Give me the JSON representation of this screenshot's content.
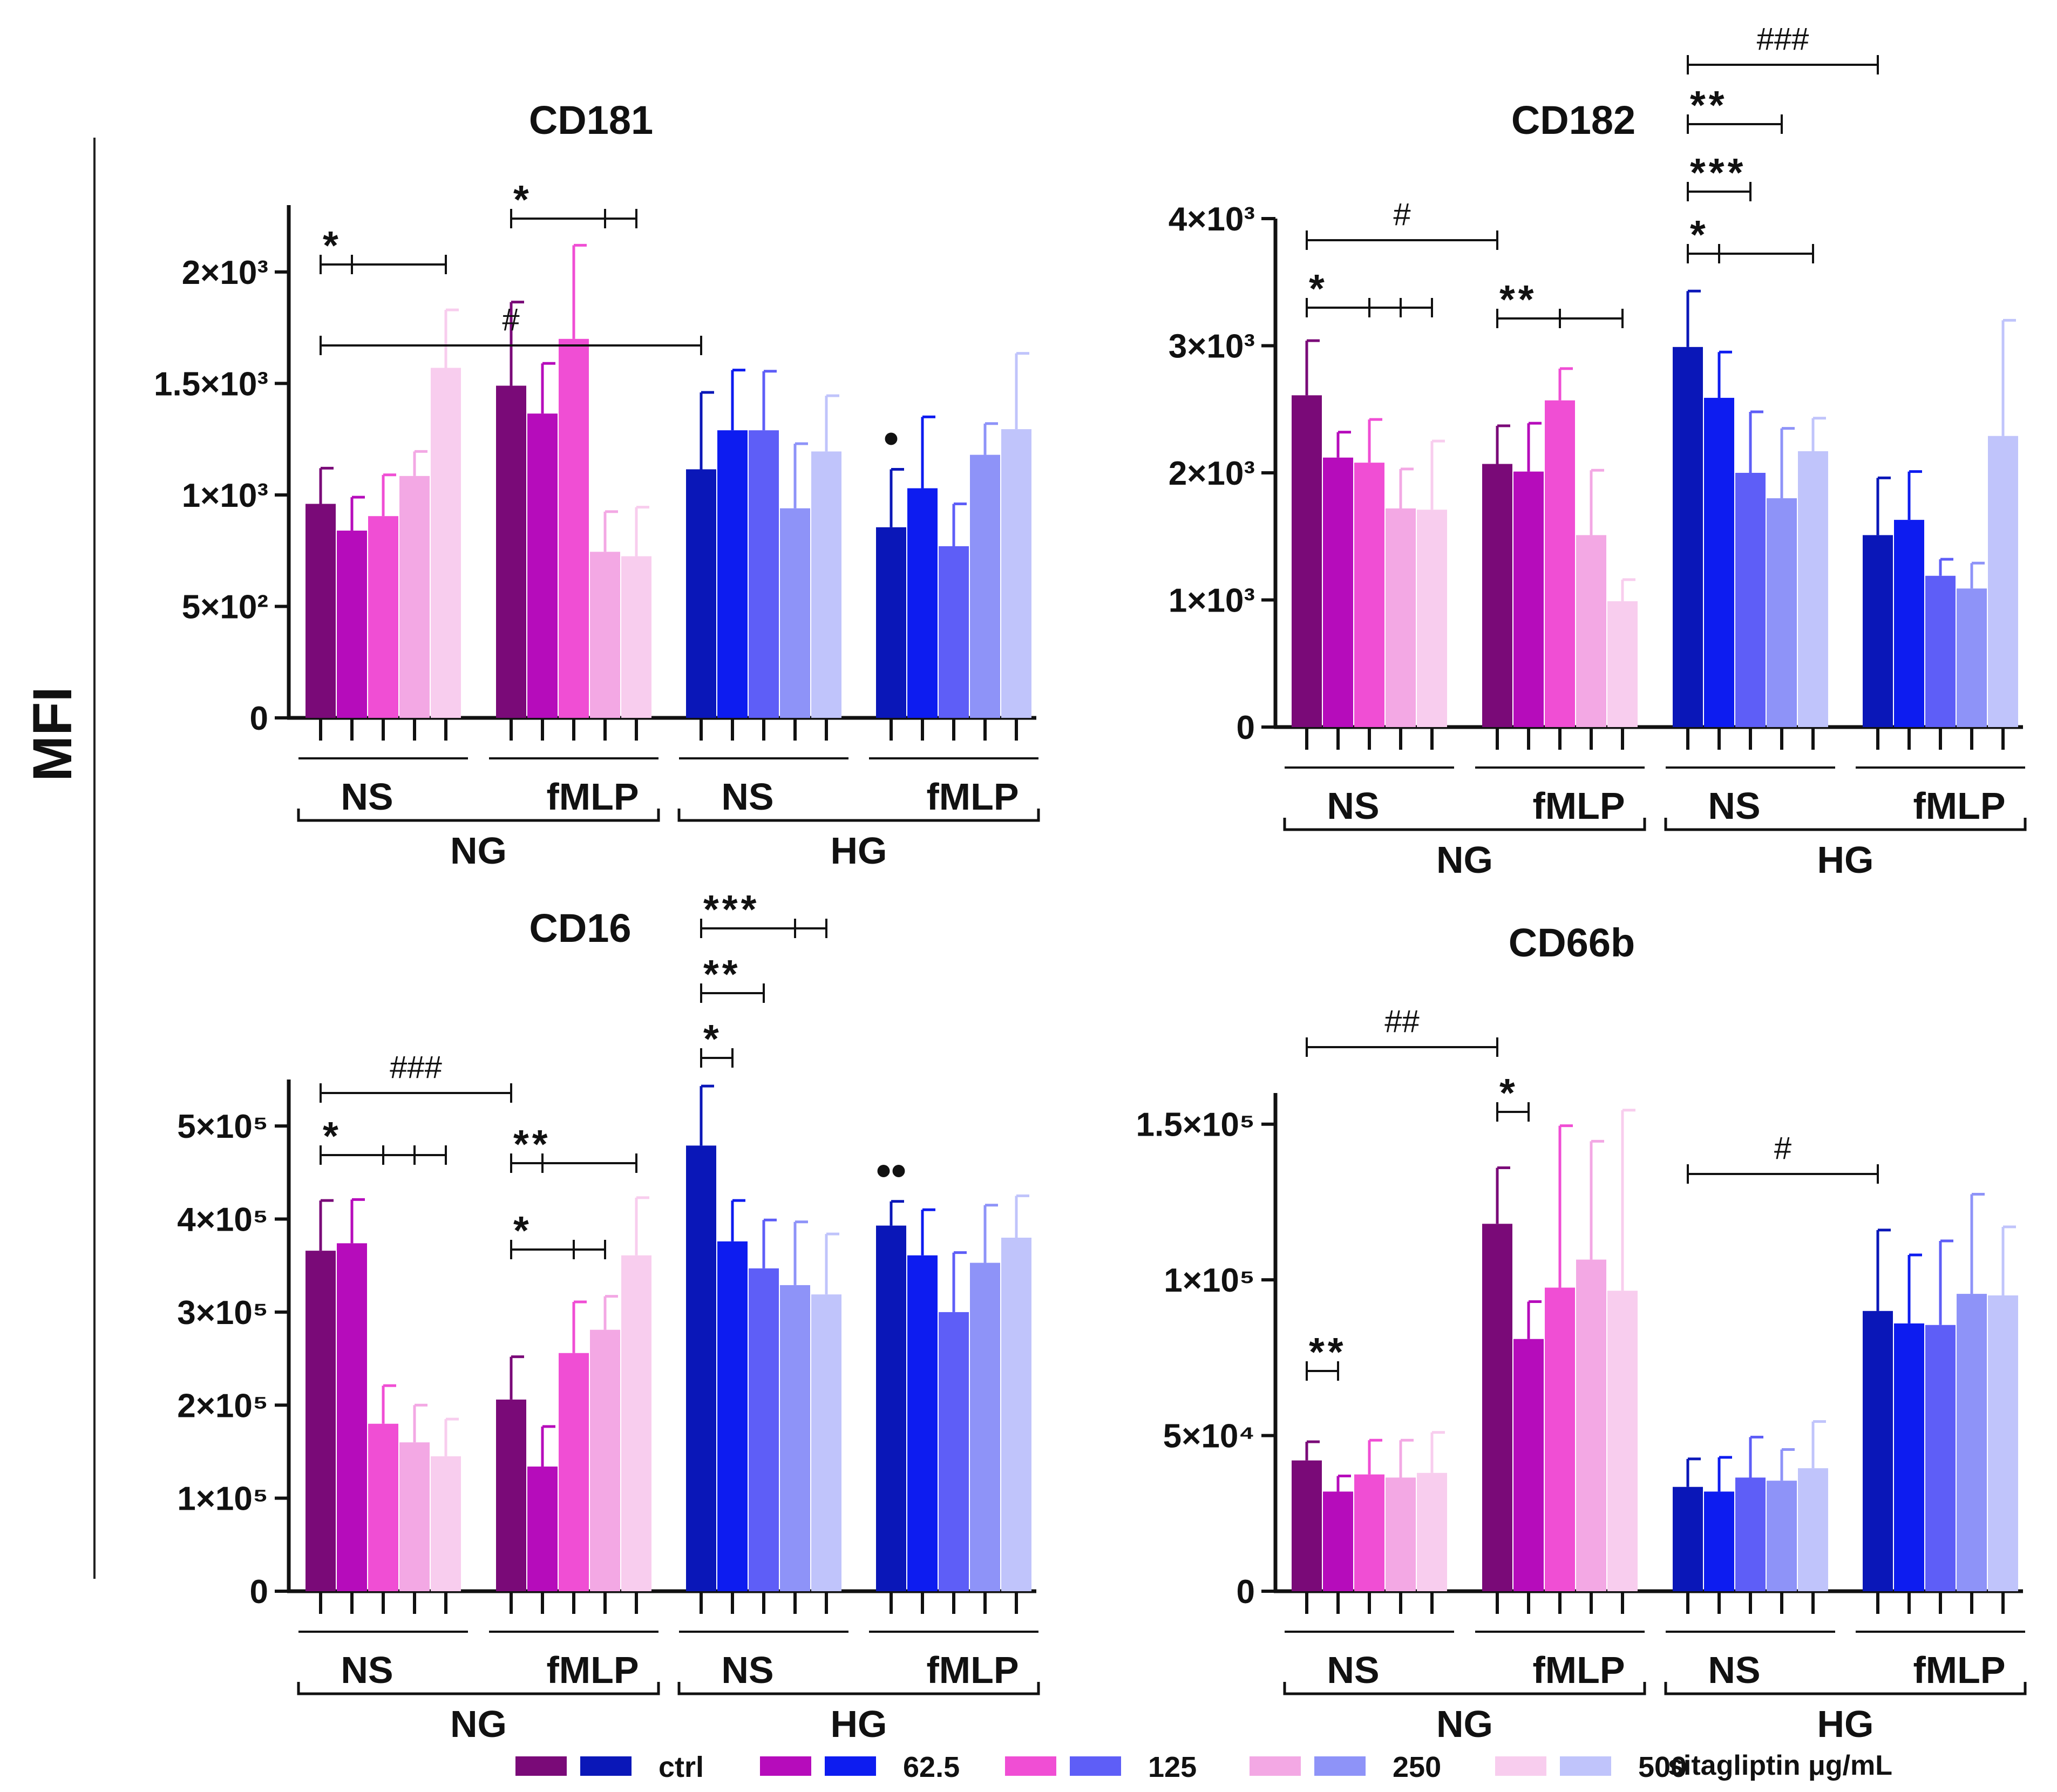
{
  "figure": {
    "y_axis_title": "MFI",
    "colors": {
      "NG": [
        "#7a0a78",
        "#b60cbb",
        "#f04ed4",
        "#f3a8e4",
        "#f8cdee"
      ],
      "HG": [
        "#0a17b8",
        "#0d1cf0",
        "#5e5ef7",
        "#8e93f8",
        "#c0c4fb"
      ],
      "text": "#111111"
    }
  },
  "legend": {
    "labels": [
      "ctrl",
      "62.5",
      "125",
      "250",
      "500"
    ],
    "unit": "sitagliptin μg/mL"
  },
  "chart_data": [
    {
      "type": "bar",
      "title": "CD181",
      "ylabel": "MFI",
      "ylim": [
        0,
        2300
      ],
      "y_ticks": [
        {
          "value": 0,
          "label": "0"
        },
        {
          "value": 500,
          "label": "5×10²"
        },
        {
          "value": 1000,
          "label": "1×10³"
        },
        {
          "value": 1500,
          "label": "1.5×10³"
        },
        {
          "value": 2000,
          "label": "2×10³"
        }
      ],
      "groups": [
        {
          "glucose": "NG",
          "stimulus": "NS",
          "values": [
            960,
            840,
            905,
            1085,
            1570
          ],
          "errors": [
            160,
            150,
            185,
            110,
            260
          ]
        },
        {
          "glucose": "NG",
          "stimulus": "fMLP",
          "values": [
            1490,
            1365,
            1700,
            745,
            725
          ],
          "errors": [
            375,
            225,
            420,
            180,
            220
          ]
        },
        {
          "glucose": "HG",
          "stimulus": "NS",
          "values": [
            1115,
            1290,
            1290,
            940,
            1195
          ],
          "errors": [
            345,
            270,
            265,
            290,
            250
          ]
        },
        {
          "glucose": "HG",
          "stimulus": "fMLP",
          "values": [
            855,
            1030,
            770,
            1180,
            1295
          ],
          "errors": [
            260,
            320,
            190,
            140,
            340
          ]
        }
      ],
      "significance": [
        {
          "label": "*",
          "kind": "star",
          "group": 0,
          "bars": [
            0,
            1,
            4
          ]
        },
        {
          "label": "*",
          "kind": "star",
          "group": 1,
          "bars": [
            0,
            3,
            4
          ]
        },
        {
          "label": "#",
          "kind": "hash",
          "bars": [
            [
              0,
              0
            ],
            [
              2,
              0
            ]
          ]
        }
      ],
      "markers": [
        {
          "label": "•",
          "group": 3,
          "bar": 0
        }
      ]
    },
    {
      "type": "bar",
      "title": "CD182",
      "ylabel": "MFI",
      "ylim": [
        0,
        4000
      ],
      "y_ticks": [
        {
          "value": 0,
          "label": "0"
        },
        {
          "value": 1000,
          "label": "1×10³"
        },
        {
          "value": 2000,
          "label": "2×10³"
        },
        {
          "value": 3000,
          "label": "3×10³"
        },
        {
          "value": 4000,
          "label": "4×10³"
        }
      ],
      "groups": [
        {
          "glucose": "NG",
          "stimulus": "NS",
          "values": [
            2610,
            2120,
            2080,
            1720,
            1710
          ],
          "errors": [
            430,
            200,
            340,
            310,
            540
          ]
        },
        {
          "glucose": "NG",
          "stimulus": "fMLP",
          "values": [
            2070,
            2010,
            2570,
            1510,
            990
          ],
          "errors": [
            300,
            380,
            250,
            510,
            170
          ]
        },
        {
          "glucose": "HG",
          "stimulus": "NS",
          "values": [
            2990,
            2590,
            2000,
            1800,
            2170
          ],
          "errors": [
            440,
            360,
            480,
            550,
            260
          ]
        },
        {
          "glucose": "HG",
          "stimulus": "fMLP",
          "values": [
            1510,
            1630,
            1190,
            1090,
            2290
          ],
          "errors": [
            450,
            380,
            130,
            200,
            910
          ]
        }
      ],
      "significance": [
        {
          "label": "#",
          "kind": "hash",
          "bars": [
            [
              0,
              0
            ],
            [
              1,
              0
            ]
          ]
        },
        {
          "label": "*",
          "kind": "star",
          "group": 0,
          "bars": [
            0,
            2,
            3,
            4
          ]
        },
        {
          "label": "**",
          "kind": "star",
          "group": 1,
          "bars": [
            0,
            2,
            4
          ]
        },
        {
          "label": "###",
          "kind": "hash",
          "bars": [
            [
              2,
              0
            ],
            [
              3,
              0
            ]
          ]
        },
        {
          "label": "**",
          "kind": "star",
          "group": 2,
          "bars": [
            0,
            3
          ]
        },
        {
          "label": "***",
          "kind": "star",
          "group": 2,
          "bars": [
            0,
            2
          ]
        },
        {
          "label": "*",
          "kind": "star",
          "group": 2,
          "bars": [
            0,
            1,
            4
          ]
        }
      ],
      "markers": []
    },
    {
      "type": "bar",
      "title": "CD16",
      "ylabel": "MFI",
      "ylim": [
        0,
        550000
      ],
      "y_ticks": [
        {
          "value": 0,
          "label": "0"
        },
        {
          "value": 100000,
          "label": "1×10⁵"
        },
        {
          "value": 200000,
          "label": "2×10⁵"
        },
        {
          "value": 300000,
          "label": "3×10⁵"
        },
        {
          "value": 400000,
          "label": "4×10⁵"
        },
        {
          "value": 500000,
          "label": "5×10⁵"
        }
      ],
      "groups": [
        {
          "glucose": "NG",
          "stimulus": "NS",
          "values": [
            366000,
            374000,
            180000,
            160000,
            145000
          ],
          "errors": [
            54000,
            47000,
            41000,
            40000,
            40000
          ]
        },
        {
          "glucose": "NG",
          "stimulus": "fMLP",
          "values": [
            206000,
            134000,
            256000,
            281000,
            361000
          ],
          "errors": [
            46000,
            43000,
            55000,
            36000,
            62000
          ]
        },
        {
          "glucose": "HG",
          "stimulus": "NS",
          "values": [
            479000,
            376000,
            347000,
            329000,
            319000
          ],
          "errors": [
            64000,
            44000,
            52000,
            68000,
            65000
          ]
        },
        {
          "glucose": "HG",
          "stimulus": "fMLP",
          "values": [
            393000,
            361000,
            300000,
            353000,
            380000
          ],
          "errors": [
            26000,
            49000,
            64000,
            62000,
            45000
          ]
        }
      ],
      "significance": [
        {
          "label": "###",
          "kind": "hash",
          "bars": [
            [
              0,
              0
            ],
            [
              1,
              0
            ]
          ]
        },
        {
          "label": "*",
          "kind": "star",
          "group": 0,
          "bars": [
            0,
            2,
            3,
            4
          ]
        },
        {
          "label": "**",
          "kind": "star",
          "group": 1,
          "bars": [
            0,
            1,
            4
          ]
        },
        {
          "label": "*",
          "kind": "star",
          "group": 1,
          "bars": [
            0,
            2,
            3
          ]
        },
        {
          "label": "***",
          "kind": "star",
          "group": 2,
          "bars": [
            0,
            3,
            4
          ]
        },
        {
          "label": "**",
          "kind": "star",
          "group": 2,
          "bars": [
            0,
            2
          ]
        },
        {
          "label": "*",
          "kind": "star",
          "group": 2,
          "bars": [
            0,
            1
          ]
        }
      ],
      "markers": [
        {
          "label": "••",
          "group": 3,
          "bar": 0
        }
      ]
    },
    {
      "type": "bar",
      "title": "CD66b",
      "ylabel": "MFI",
      "ylim": [
        0,
        160000
      ],
      "y_ticks": [
        {
          "value": 0,
          "label": "0"
        },
        {
          "value": 50000,
          "label": "5×10⁴"
        },
        {
          "value": 100000,
          "label": "1×10⁵"
        },
        {
          "value": 150000,
          "label": "1.5×10⁵"
        }
      ],
      "groups": [
        {
          "glucose": "NG",
          "stimulus": "NS",
          "values": [
            42000,
            32000,
            37500,
            36500,
            38000
          ],
          "errors": [
            6000,
            5000,
            11000,
            12000,
            13000
          ]
        },
        {
          "glucose": "NG",
          "stimulus": "fMLP",
          "values": [
            118000,
            81000,
            97500,
            106500,
            96500
          ],
          "errors": [
            18000,
            12000,
            52000,
            38000,
            58000
          ]
        },
        {
          "glucose": "HG",
          "stimulus": "NS",
          "values": [
            33500,
            32000,
            36500,
            35500,
            39500
          ],
          "errors": [
            9000,
            11000,
            13000,
            10000,
            15000
          ]
        },
        {
          "glucose": "HG",
          "stimulus": "fMLP",
          "values": [
            90000,
            86000,
            85500,
            95500,
            95000
          ],
          "errors": [
            26000,
            22000,
            27000,
            32000,
            22000
          ]
        }
      ],
      "significance": [
        {
          "label": "##",
          "kind": "hash",
          "bars": [
            [
              0,
              0
            ],
            [
              1,
              0
            ]
          ]
        },
        {
          "label": "*",
          "kind": "star",
          "group": 1,
          "bars": [
            0,
            1
          ]
        },
        {
          "label": "#",
          "kind": "hash",
          "bars": [
            [
              2,
              0
            ],
            [
              3,
              0
            ]
          ]
        },
        {
          "label": "**",
          "kind": "star",
          "group": 0,
          "bars": [
            0,
            1
          ]
        }
      ],
      "markers": []
    }
  ]
}
